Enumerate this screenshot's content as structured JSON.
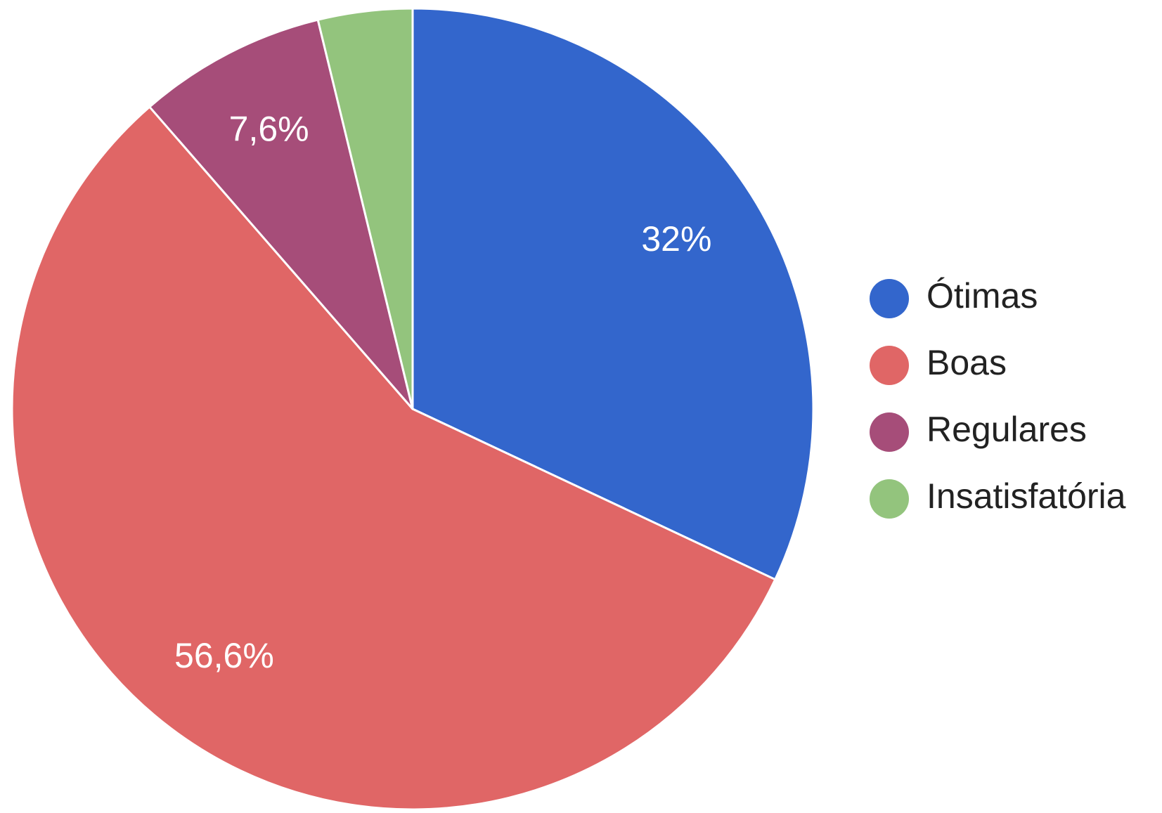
{
  "chart_data": {
    "type": "pie",
    "categories": [
      "Ótimas",
      "Boas",
      "Regulares",
      "Insatisfatória"
    ],
    "values": [
      32,
      56.6,
      7.6,
      3.8
    ],
    "value_labels": [
      "32%",
      "56,6%",
      "7,6%",
      null
    ],
    "colors": [
      "#3366cc",
      "#e06666",
      "#a64d79",
      "#93c47d"
    ],
    "legend": "right"
  }
}
